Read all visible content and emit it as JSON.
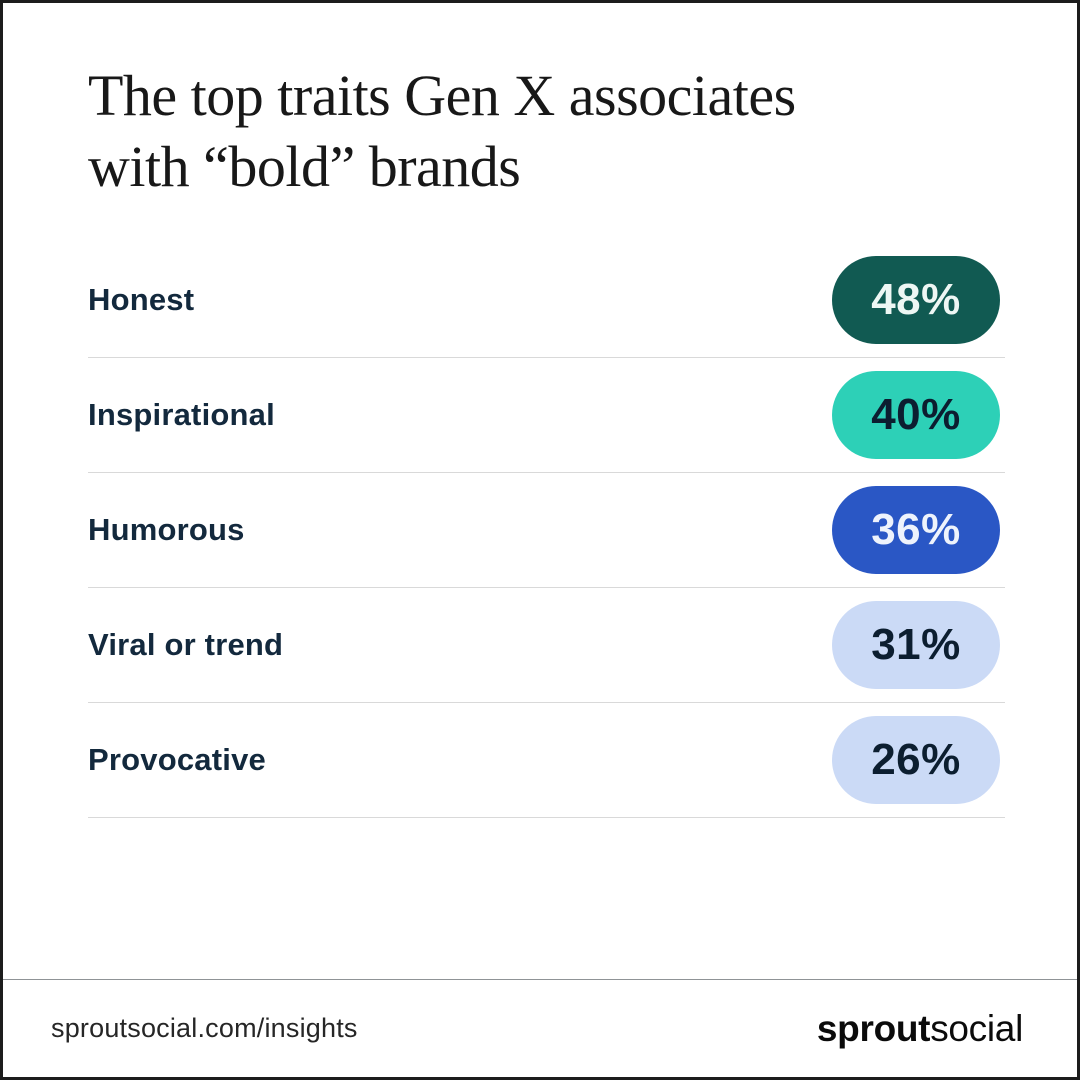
{
  "canvas": {
    "background": "#ffffff",
    "border_color": "#1c1c1c"
  },
  "title": {
    "line1": "The top traits Gen X associates",
    "line2": "with “bold” brands",
    "color": "#181818"
  },
  "chart_data": {
    "type": "bar",
    "orientation": "horizontal-ranked-list",
    "title": "The top traits Gen X associates with “bold” brands",
    "categories": [
      "Honest",
      "Inspirational",
      "Humorous",
      "Viral or trend",
      "Provocative"
    ],
    "values": [
      48,
      40,
      36,
      31,
      26
    ],
    "unit": "%",
    "value_labels": [
      "48%",
      "40%",
      "36%",
      "31%",
      "26%"
    ],
    "series_colors": [
      "#115a52",
      "#2dd0b7",
      "#2a57c5",
      "#cbdaf6",
      "#cbdaf6"
    ],
    "grid": "row-dividers",
    "legend_position": "none"
  },
  "rows": [
    {
      "label": "Honest",
      "value_label": "48%",
      "pill_bg": "#115a52",
      "pill_fg": "#eef7f4"
    },
    {
      "label": "Inspirational",
      "value_label": "40%",
      "pill_bg": "#2dd0b7",
      "pill_fg": "#0c1e30"
    },
    {
      "label": "Humorous",
      "value_label": "36%",
      "pill_bg": "#2a57c5",
      "pill_fg": "#eef3fc"
    },
    {
      "label": "Viral or trend",
      "value_label": "31%",
      "pill_bg": "#cbdaf6",
      "pill_fg": "#0c1e30"
    },
    {
      "label": "Provocative",
      "value_label": "26%",
      "pill_bg": "#cbdaf6",
      "pill_fg": "#0c1e30"
    }
  ],
  "footer": {
    "url": "sproutsocial.com/insights",
    "brand_bold": "sprout",
    "brand_light": "social"
  },
  "colors": {
    "label_navy": "#13293d",
    "row_divider": "#d9d9d9",
    "footer_divider": "#8f9396",
    "footer_text": "#262626",
    "logo_black": "#0b0b0b"
  }
}
